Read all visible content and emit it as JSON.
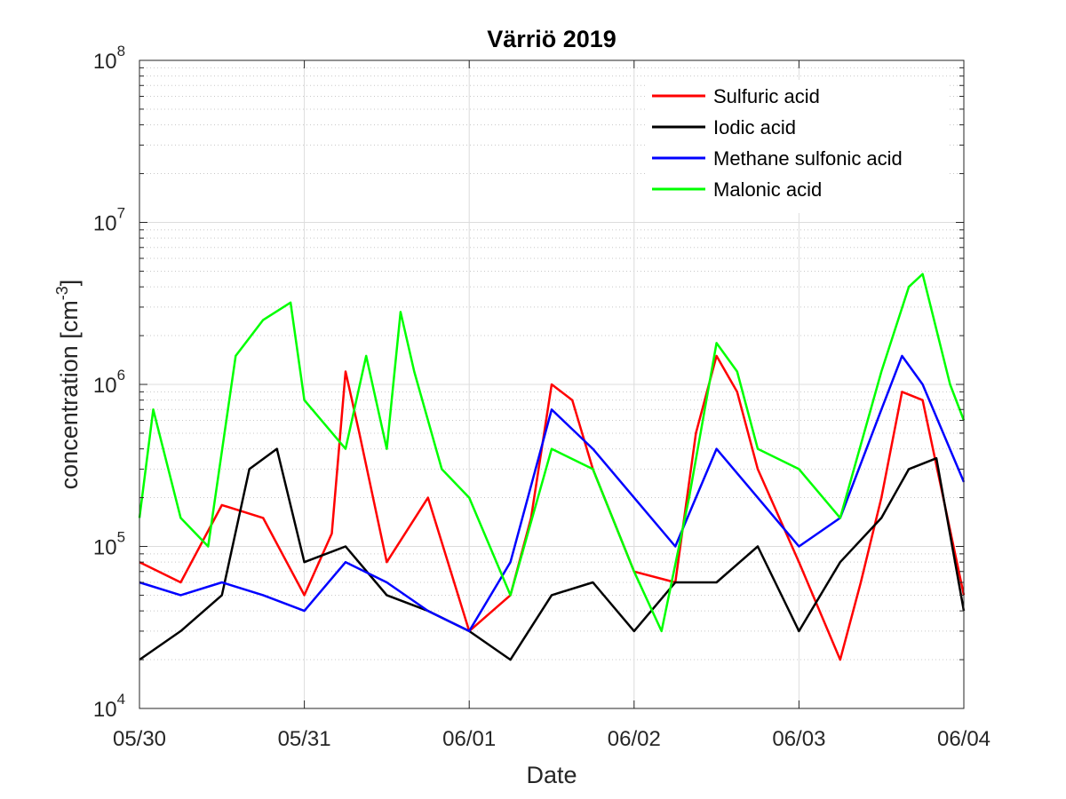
{
  "chart_data": {
    "type": "line",
    "title": "Värriö 2019",
    "xlabel": "Date",
    "ylabel": {
      "base": "concentration [cm",
      "sup": "-3",
      "end": "]"
    },
    "y_scale": "log",
    "grid": true,
    "ylim": [
      10000,
      100000000
    ],
    "y_ticks": [
      {
        "base": "10",
        "exp": "4",
        "value": 10000
      },
      {
        "base": "10",
        "exp": "5",
        "value": 100000
      },
      {
        "base": "10",
        "exp": "6",
        "value": 1000000
      },
      {
        "base": "10",
        "exp": "7",
        "value": 10000000
      },
      {
        "base": "10",
        "exp": "8",
        "value": 100000000
      }
    ],
    "x_ticks": [
      "05/30",
      "05/31",
      "06/01",
      "06/02",
      "06/03",
      "06/04"
    ],
    "xlim": [
      "2019-05-30 00:00",
      "2019-06-04 00:00"
    ],
    "legend_position": "top-right",
    "series": [
      {
        "name": "Sulfuric acid",
        "color": "#ff0000",
        "x": [
          "2019-05-30 00:00",
          "2019-05-30 06:00",
          "2019-05-30 12:00",
          "2019-05-30 18:00",
          "2019-05-31 00:00",
          "2019-05-31 04:00",
          "2019-05-31 06:00",
          "2019-05-31 08:00",
          "2019-05-31 12:00",
          "2019-05-31 18:00",
          "2019-06-01 00:00",
          "2019-06-01 06:00",
          "2019-06-01 09:00",
          "2019-06-01 12:00",
          "2019-06-01 15:00",
          "2019-06-01 18:00",
          "2019-06-02 00:00",
          "2019-06-02 06:00",
          "2019-06-02 09:00",
          "2019-06-02 12:00",
          "2019-06-02 15:00",
          "2019-06-02 18:00",
          "2019-06-03 00:00",
          "2019-06-03 06:00",
          "2019-06-03 09:00",
          "2019-06-03 12:00",
          "2019-06-03 15:00",
          "2019-06-03 18:00",
          "2019-06-04 00:00"
        ],
        "y": [
          80000,
          60000,
          180000,
          150000,
          50000,
          120000,
          1200000,
          500000,
          80000,
          200000,
          30000,
          50000,
          150000,
          1000000,
          800000,
          300000,
          70000,
          60000,
          500000,
          1500000,
          900000,
          300000,
          80000,
          20000,
          60000,
          200000,
          900000,
          800000,
          50000
        ]
      },
      {
        "name": "Iodic acid",
        "color": "#000000",
        "x": [
          "2019-05-30 00:00",
          "2019-05-30 06:00",
          "2019-05-30 12:00",
          "2019-05-30 16:00",
          "2019-05-30 20:00",
          "2019-05-31 00:00",
          "2019-05-31 06:00",
          "2019-05-31 12:00",
          "2019-05-31 18:00",
          "2019-06-01 00:00",
          "2019-06-01 06:00",
          "2019-06-01 12:00",
          "2019-06-01 18:00",
          "2019-06-02 00:00",
          "2019-06-02 06:00",
          "2019-06-02 12:00",
          "2019-06-02 18:00",
          "2019-06-03 00:00",
          "2019-06-03 06:00",
          "2019-06-03 12:00",
          "2019-06-03 16:00",
          "2019-06-03 20:00",
          "2019-06-04 00:00"
        ],
        "y": [
          20000,
          30000,
          50000,
          300000,
          400000,
          80000,
          100000,
          50000,
          40000,
          30000,
          20000,
          50000,
          60000,
          30000,
          60000,
          60000,
          100000,
          30000,
          80000,
          150000,
          300000,
          350000,
          40000
        ]
      },
      {
        "name": "Methane sulfonic acid",
        "color": "#0000ff",
        "x": [
          "2019-05-30 00:00",
          "2019-05-30 06:00",
          "2019-05-30 12:00",
          "2019-05-30 18:00",
          "2019-05-31 00:00",
          "2019-05-31 06:00",
          "2019-05-31 12:00",
          "2019-05-31 18:00",
          "2019-06-01 00:00",
          "2019-06-01 06:00",
          "2019-06-01 12:00",
          "2019-06-01 18:00",
          "2019-06-02 00:00",
          "2019-06-02 06:00",
          "2019-06-02 12:00",
          "2019-06-02 18:00",
          "2019-06-03 00:00",
          "2019-06-03 06:00",
          "2019-06-03 12:00",
          "2019-06-03 15:00",
          "2019-06-03 18:00",
          "2019-06-04 00:00"
        ],
        "y": [
          60000,
          50000,
          60000,
          50000,
          40000,
          80000,
          60000,
          40000,
          30000,
          80000,
          700000,
          400000,
          200000,
          100000,
          400000,
          200000,
          100000,
          150000,
          700000,
          1500000,
          1000000,
          250000
        ]
      },
      {
        "name": "Malonic acid",
        "color": "#00ff00",
        "x": [
          "2019-05-30 00:00",
          "2019-05-30 02:00",
          "2019-05-30 06:00",
          "2019-05-30 10:00",
          "2019-05-30 14:00",
          "2019-05-30 18:00",
          "2019-05-30 22:00",
          "2019-05-31 00:00",
          "2019-05-31 06:00",
          "2019-05-31 09:00",
          "2019-05-31 12:00",
          "2019-05-31 14:00",
          "2019-05-31 16:00",
          "2019-05-31 20:00",
          "2019-06-01 00:00",
          "2019-06-01 06:00",
          "2019-06-01 12:00",
          "2019-06-01 18:00",
          "2019-06-02 00:00",
          "2019-06-02 04:00",
          "2019-06-02 08:00",
          "2019-06-02 12:00",
          "2019-06-02 15:00",
          "2019-06-02 18:00",
          "2019-06-03 00:00",
          "2019-06-03 06:00",
          "2019-06-03 12:00",
          "2019-06-03 16:00",
          "2019-06-03 18:00",
          "2019-06-03 22:00",
          "2019-06-04 00:00"
        ],
        "y": [
          150000,
          700000,
          150000,
          100000,
          1500000,
          2500000,
          3200000,
          800000,
          400000,
          1500000,
          400000,
          2800000,
          1200000,
          300000,
          200000,
          50000,
          400000,
          300000,
          70000,
          30000,
          200000,
          1800000,
          1200000,
          400000,
          300000,
          150000,
          1200000,
          4000000,
          4800000,
          1000000,
          600000
        ]
      }
    ]
  }
}
